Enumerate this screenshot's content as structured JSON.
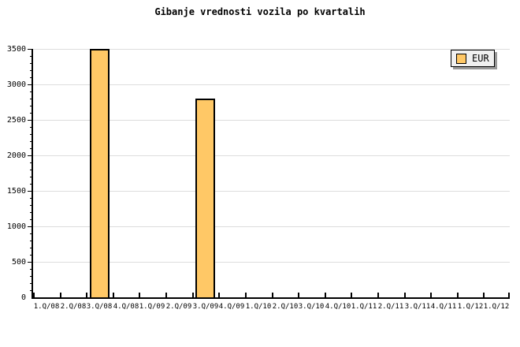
{
  "title": "Gibanje vrednosti vozila po kvartalih",
  "legend": {
    "label": "EUR"
  },
  "chart_data": {
    "type": "bar",
    "title": "Gibanje vrednosti vozila po kvartalih",
    "categories": [
      "1.Q/08",
      "2.Q/08",
      "3.Q/08",
      "4.Q/08",
      "1.Q/09",
      "2.Q/09",
      "3.Q/09",
      "4.Q/09",
      "1.Q/10",
      "2.Q/10",
      "3.Q/10",
      "4.Q/10",
      "1.Q/11",
      "2.Q/11",
      "3.Q/11",
      "4.Q/11",
      "1.Q/12",
      "1.Q/12"
    ],
    "series": [
      {
        "name": "EUR",
        "values": [
          0,
          0,
          3500,
          0,
          0,
          0,
          2800,
          0,
          0,
          0,
          0,
          0,
          0,
          0,
          0,
          0,
          0,
          0
        ]
      }
    ],
    "xlabel": "",
    "ylabel": "",
    "ylim": [
      0,
      3500
    ],
    "ytick_major": 500,
    "ytick_minor": 100,
    "grid": true,
    "legend_position": "top-right",
    "colors": {
      "bar_fill": "#FFC866",
      "bar_border": "#000000",
      "grid": "#DDDDDD",
      "axis": "#000000",
      "legend_bg": "#F0F0F0",
      "legend_border": "#000000",
      "legend_shadow": "#999999",
      "background": "#FFFFFF",
      "text": "#000000"
    }
  }
}
